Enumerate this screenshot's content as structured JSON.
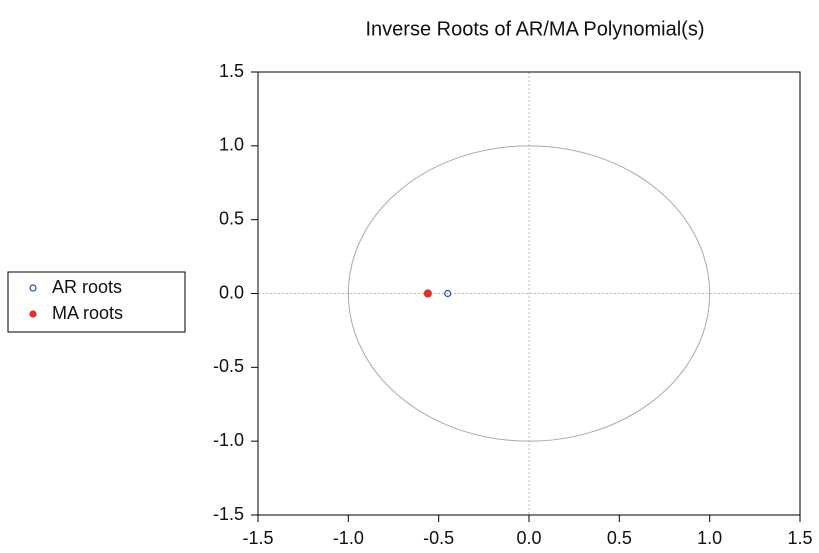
{
  "chart_data": {
    "type": "scatter",
    "title": "Inverse Roots of AR/MA Polynomial(s)",
    "series": [
      {
        "name": "AR roots",
        "color": "#1f4fa0",
        "marker": "open",
        "x": [
          -0.45
        ],
        "values": [
          0
        ]
      },
      {
        "name": "MA roots",
        "color": "#e0302a",
        "marker": "filled",
        "x": [
          -0.56
        ],
        "values": [
          0
        ]
      }
    ],
    "xlim": [
      -1.5,
      1.5
    ],
    "xticks": [
      -1.5,
      {
        "value": -1,
        "label": "-1.0"
      },
      -0.5,
      {
        "value": 0,
        "label": "0.0"
      },
      0.5,
      {
        "value": 1,
        "label": "1.0"
      },
      1.5
    ],
    "ylim": [
      -1.5,
      1.5
    ],
    "yticks": [
      -1.5,
      {
        "value": -1,
        "label": "-1.0"
      },
      -0.5,
      {
        "value": 0,
        "label": "0.0"
      },
      0.5,
      {
        "value": 1,
        "label": "1.0"
      },
      1.5
    ],
    "unit_circle": true,
    "zero_lines": true,
    "legend": "left"
  }
}
